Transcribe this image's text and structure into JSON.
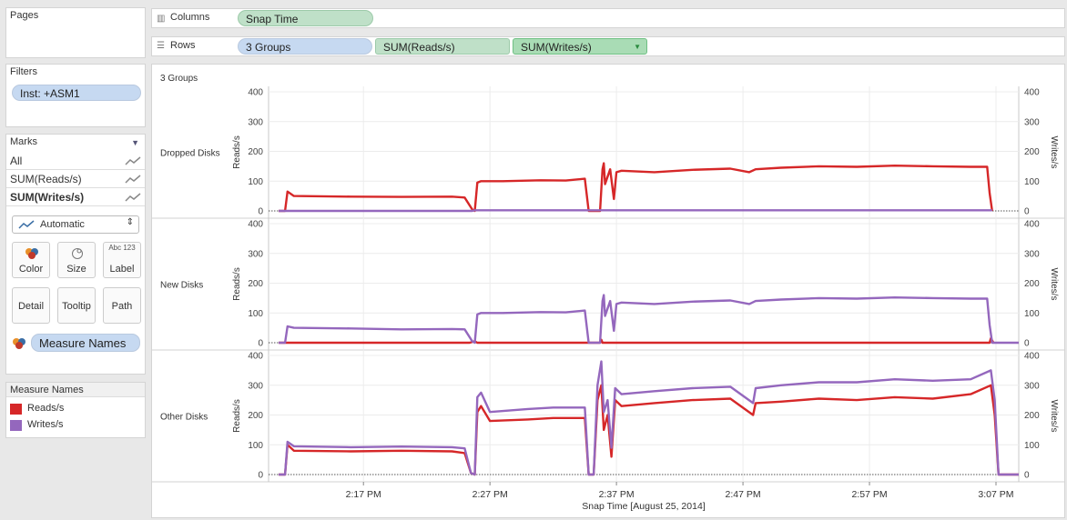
{
  "pages": {
    "title": "Pages"
  },
  "filters": {
    "title": "Filters",
    "items": [
      "Inst: +ASM1"
    ]
  },
  "marks": {
    "title": "Marks",
    "rows": [
      "All",
      "SUM(Reads/s)",
      "SUM(Writes/s)"
    ],
    "mark_type": "Automatic",
    "buttons": {
      "color": "Color",
      "size": "Size",
      "label": "Label",
      "detail": "Detail",
      "tooltip": "Tooltip",
      "path": "Path"
    },
    "label_icon_text": "Abc 123",
    "color_field": "Measure Names"
  },
  "legend": {
    "title": "Measure Names",
    "items": [
      {
        "name": "Reads/s",
        "color": "#d62728"
      },
      {
        "name": "Writes/s",
        "color": "#9467bd"
      }
    ]
  },
  "shelves": {
    "columns": {
      "label": "Columns",
      "pills": [
        "Snap Time"
      ]
    },
    "rows": {
      "label": "Rows",
      "pills": [
        "3 Groups",
        "SUM(Reads/s)",
        "SUM(Writes/s)"
      ]
    }
  },
  "chart_data": {
    "type": "line",
    "header": "3 Groups",
    "xlabel": "Snap Time [August 25, 2014]",
    "x_ticks": [
      "2:17 PM",
      "2:27 PM",
      "2:37 PM",
      "2:47 PM",
      "2:57 PM",
      "3:07 PM"
    ],
    "x_tick_minutes": [
      17,
      27,
      37,
      47,
      57,
      67
    ],
    "x_range_minutes": [
      9.5,
      68.8
    ],
    "ylim": [
      0,
      400
    ],
    "y_ticks": [
      0,
      100,
      200,
      300,
      400
    ],
    "ylabel_left": "Reads/s",
    "ylabel_right": "Writes/s",
    "grid": true,
    "colors": {
      "reads": "#d62728",
      "writes": "#9467bd"
    },
    "panels": [
      {
        "name": "Dropped Disks",
        "reads": [
          [
            10.3,
            0
          ],
          [
            10.8,
            0
          ],
          [
            11.0,
            65
          ],
          [
            11.5,
            50
          ],
          [
            16,
            48
          ],
          [
            20,
            47
          ],
          [
            24,
            48
          ],
          [
            25.0,
            45
          ],
          [
            25.6,
            5
          ],
          [
            25.8,
            0
          ],
          [
            26.0,
            95
          ],
          [
            26.3,
            100
          ],
          [
            28,
            100
          ],
          [
            31,
            103
          ],
          [
            33,
            102
          ],
          [
            34.5,
            108
          ],
          [
            34.8,
            0
          ],
          [
            35.7,
            0
          ],
          [
            35.9,
            140
          ],
          [
            36.0,
            160
          ],
          [
            36.1,
            90
          ],
          [
            36.5,
            140
          ],
          [
            36.8,
            40
          ],
          [
            37.0,
            130
          ],
          [
            37.4,
            135
          ],
          [
            40,
            130
          ],
          [
            43,
            138
          ],
          [
            46,
            142
          ],
          [
            47.5,
            130
          ],
          [
            48,
            140
          ],
          [
            50,
            145
          ],
          [
            53,
            150
          ],
          [
            56,
            148
          ],
          [
            59,
            152
          ],
          [
            62,
            150
          ],
          [
            65,
            148
          ],
          [
            66.3,
            148
          ],
          [
            66.5,
            60
          ],
          [
            66.7,
            0
          ]
        ],
        "writes": [
          [
            10.3,
            0
          ],
          [
            25.6,
            0
          ],
          [
            25.8,
            2
          ],
          [
            34.8,
            2
          ],
          [
            35.7,
            2
          ],
          [
            66.7,
            2
          ]
        ]
      },
      {
        "name": "New Disks",
        "reads": [
          [
            10.3,
            0
          ],
          [
            25.4,
            0
          ],
          [
            25.8,
            5
          ],
          [
            26.0,
            0
          ],
          [
            35.7,
            0
          ],
          [
            35.8,
            10
          ],
          [
            35.9,
            0
          ],
          [
            66.5,
            0
          ],
          [
            66.6,
            15
          ],
          [
            66.8,
            0
          ]
        ],
        "writes": [
          [
            10.3,
            0
          ],
          [
            10.8,
            0
          ],
          [
            11.0,
            55
          ],
          [
            11.5,
            50
          ],
          [
            16,
            48
          ],
          [
            20,
            45
          ],
          [
            24,
            46
          ],
          [
            25.0,
            45
          ],
          [
            25.6,
            5
          ],
          [
            25.8,
            0
          ],
          [
            26.0,
            95
          ],
          [
            26.3,
            100
          ],
          [
            28,
            100
          ],
          [
            31,
            103
          ],
          [
            33,
            102
          ],
          [
            34.5,
            108
          ],
          [
            34.8,
            0
          ],
          [
            35.7,
            0
          ],
          [
            35.9,
            140
          ],
          [
            36.0,
            160
          ],
          [
            36.1,
            90
          ],
          [
            36.5,
            140
          ],
          [
            36.8,
            40
          ],
          [
            37.0,
            130
          ],
          [
            37.4,
            135
          ],
          [
            40,
            130
          ],
          [
            43,
            138
          ],
          [
            46,
            142
          ],
          [
            47.5,
            130
          ],
          [
            48,
            140
          ],
          [
            50,
            145
          ],
          [
            53,
            150
          ],
          [
            56,
            148
          ],
          [
            59,
            152
          ],
          [
            62,
            150
          ],
          [
            65,
            148
          ],
          [
            66.3,
            148
          ],
          [
            66.5,
            60
          ],
          [
            66.7,
            0
          ],
          [
            68.8,
            0
          ]
        ]
      },
      {
        "name": "Other Disks",
        "reads": [
          [
            10.3,
            0
          ],
          [
            10.8,
            0
          ],
          [
            11.0,
            100
          ],
          [
            11.5,
            80
          ],
          [
            16,
            78
          ],
          [
            20,
            80
          ],
          [
            24,
            78
          ],
          [
            25.0,
            72
          ],
          [
            25.5,
            5
          ],
          [
            25.8,
            0
          ],
          [
            26.0,
            210
          ],
          [
            26.3,
            230
          ],
          [
            27,
            180
          ],
          [
            30,
            185
          ],
          [
            32,
            190
          ],
          [
            34.5,
            190
          ],
          [
            34.8,
            0
          ],
          [
            35.2,
            0
          ],
          [
            35.5,
            250
          ],
          [
            35.8,
            300
          ],
          [
            36.0,
            150
          ],
          [
            36.3,
            200
          ],
          [
            36.6,
            60
          ],
          [
            36.9,
            250
          ],
          [
            37.4,
            230
          ],
          [
            40,
            240
          ],
          [
            43,
            250
          ],
          [
            46,
            255
          ],
          [
            47.8,
            200
          ],
          [
            48,
            240
          ],
          [
            50,
            245
          ],
          [
            53,
            255
          ],
          [
            56,
            250
          ],
          [
            59,
            260
          ],
          [
            62,
            255
          ],
          [
            65,
            270
          ],
          [
            66.6,
            300
          ],
          [
            66.9,
            200
          ],
          [
            67.2,
            0
          ],
          [
            68.8,
            0
          ]
        ],
        "writes": [
          [
            10.3,
            0
          ],
          [
            10.8,
            0
          ],
          [
            11.0,
            110
          ],
          [
            11.5,
            95
          ],
          [
            16,
            92
          ],
          [
            20,
            94
          ],
          [
            24,
            92
          ],
          [
            25.0,
            88
          ],
          [
            25.5,
            5
          ],
          [
            25.8,
            0
          ],
          [
            26.0,
            260
          ],
          [
            26.3,
            275
          ],
          [
            27,
            210
          ],
          [
            30,
            220
          ],
          [
            32,
            225
          ],
          [
            34.5,
            225
          ],
          [
            34.8,
            0
          ],
          [
            35.2,
            0
          ],
          [
            35.5,
            300
          ],
          [
            35.8,
            380
          ],
          [
            36.0,
            210
          ],
          [
            36.3,
            250
          ],
          [
            36.6,
            90
          ],
          [
            36.9,
            290
          ],
          [
            37.4,
            270
          ],
          [
            40,
            280
          ],
          [
            43,
            290
          ],
          [
            46,
            295
          ],
          [
            47.8,
            240
          ],
          [
            48,
            290
          ],
          [
            50,
            300
          ],
          [
            53,
            310
          ],
          [
            56,
            310
          ],
          [
            59,
            320
          ],
          [
            62,
            315
          ],
          [
            65,
            320
          ],
          [
            66.6,
            350
          ],
          [
            66.9,
            250
          ],
          [
            67.2,
            0
          ],
          [
            68.8,
            0
          ]
        ]
      }
    ]
  }
}
